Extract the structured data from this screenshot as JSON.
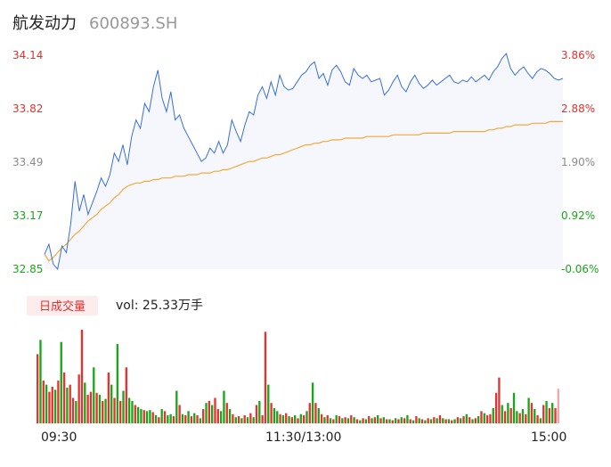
{
  "header": {
    "name": "航发动力",
    "code": "600893.SH"
  },
  "colors": {
    "up": "#e8312f",
    "down": "#1aa51a",
    "price": "#3a6fd6",
    "avg": "#f2a93b",
    "neutral": "#8a8a8a"
  },
  "volume_tab": {
    "label": "日成交量"
  },
  "volume_text": "vol: 25.33万手",
  "chart_data": {
    "type": "line",
    "x_ticks": [
      "09:30",
      "11:30/13:00",
      "15:00"
    ],
    "price_ticks": [
      "34.14",
      "33.82",
      "33.49",
      "33.17",
      "32.85"
    ],
    "pct_ticks": [
      "3.86%",
      "2.88%",
      "1.90%",
      "0.92%",
      "-0.06%"
    ],
    "ylim": [
      32.85,
      34.14
    ],
    "prev_close": 32.87,
    "series": [
      {
        "values": [
          32.94,
          33.0,
          32.88,
          32.85,
          32.99,
          32.95,
          33.12,
          33.38,
          33.2,
          33.3,
          33.18,
          33.25,
          33.32,
          33.4,
          33.35,
          33.42,
          33.55,
          33.5,
          33.6,
          33.48,
          33.65,
          33.75,
          33.7,
          33.85,
          33.8,
          33.95,
          34.05,
          33.88,
          33.8,
          33.92,
          33.75,
          33.78,
          33.7,
          33.65,
          33.6,
          33.55,
          33.5,
          33.52,
          33.58,
          33.55,
          33.62,
          33.55,
          33.6,
          33.75,
          33.68,
          33.62,
          33.72,
          33.8,
          33.78,
          33.9,
          33.95,
          33.88,
          33.98,
          33.9,
          34.02,
          33.95,
          33.93,
          33.94,
          33.98,
          34.02,
          34.04,
          34.08,
          34.1,
          34.0,
          34.03,
          33.96,
          34.05,
          34.08,
          34.04,
          33.98,
          33.96,
          34.06,
          34.02,
          34.0,
          34.02,
          33.98,
          33.99,
          34.0,
          33.9,
          33.93,
          33.98,
          34.02,
          33.95,
          33.92,
          33.98,
          34.02,
          33.97,
          33.94,
          33.96,
          33.99,
          33.96,
          33.98,
          34.0,
          34.02,
          33.98,
          33.97,
          33.99,
          33.98,
          34.01,
          33.98,
          34.0,
          34.02,
          33.99,
          34.04,
          34.07,
          34.12,
          34.15,
          34.06,
          34.02,
          34.05,
          34.07,
          34.03,
          34.0,
          34.04,
          34.06,
          34.05,
          34.03,
          34.0,
          33.99,
          34.0
        ]
      },
      {
        "values": [
          32.94,
          32.9,
          32.92,
          32.95,
          32.98,
          33.0,
          33.03,
          33.06,
          33.08,
          33.11,
          33.14,
          33.16,
          33.18,
          33.21,
          33.23,
          33.25,
          33.28,
          33.3,
          33.33,
          33.35,
          33.36,
          33.37,
          33.37,
          33.38,
          33.38,
          33.39,
          33.39,
          33.4,
          33.4,
          33.4,
          33.41,
          33.41,
          33.41,
          33.42,
          33.42,
          33.42,
          33.43,
          33.43,
          33.43,
          33.44,
          33.44,
          33.45,
          33.45,
          33.46,
          33.47,
          33.48,
          33.49,
          33.5,
          33.5,
          33.51,
          33.52,
          33.52,
          33.53,
          33.54,
          33.54,
          33.55,
          33.56,
          33.57,
          33.58,
          33.59,
          33.6,
          33.6,
          33.61,
          33.61,
          33.62,
          33.62,
          33.63,
          33.63,
          33.63,
          33.64,
          33.64,
          33.64,
          33.64,
          33.64,
          33.65,
          33.65,
          33.65,
          33.65,
          33.65,
          33.65,
          33.66,
          33.66,
          33.66,
          33.66,
          33.66,
          33.66,
          33.66,
          33.67,
          33.67,
          33.67,
          33.67,
          33.67,
          33.67,
          33.67,
          33.68,
          33.68,
          33.68,
          33.68,
          33.68,
          33.68,
          33.68,
          33.68,
          33.69,
          33.69,
          33.7,
          33.7,
          33.71,
          33.71,
          33.72,
          33.72,
          33.72,
          33.72,
          33.73,
          33.73,
          33.73,
          33.73,
          33.74,
          33.74,
          33.74,
          33.74
        ]
      }
    ],
    "volume": {
      "values": [
        68,
        82,
        42,
        38,
        31,
        36,
        33,
        42,
        80,
        50,
        35,
        38,
        25,
        22,
        48,
        92,
        40,
        28,
        31,
        55,
        30,
        28,
        22,
        24,
        50,
        38,
        25,
        78,
        22,
        32,
        55,
        25,
        22,
        18,
        16,
        14,
        13,
        12,
        13,
        11,
        8,
        6,
        14,
        12,
        8,
        9,
        7,
        32,
        18,
        9,
        8,
        12,
        7,
        10,
        8,
        5,
        14,
        20,
        22,
        18,
        25,
        14,
        12,
        32,
        20,
        14,
        9,
        6,
        7,
        5,
        8,
        6,
        10,
        6,
        18,
        22,
        8,
        90,
        38,
        20,
        15,
        12,
        9,
        8,
        10,
        7,
        6,
        8,
        5,
        9,
        8,
        12,
        20,
        40,
        20,
        15,
        9,
        6,
        8,
        5,
        4,
        8,
        7,
        5,
        6,
        5,
        8,
        6,
        4,
        3,
        5,
        4,
        7,
        5,
        6,
        8,
        5,
        6,
        4,
        4,
        3,
        5,
        4,
        6,
        5,
        8,
        4,
        3,
        7,
        5,
        4,
        3,
        5,
        4,
        6,
        5,
        8,
        5,
        4,
        4,
        3,
        4,
        6,
        5,
        7,
        9,
        6,
        4,
        5,
        7,
        12,
        10,
        8,
        9,
        15,
        30,
        45,
        18,
        12,
        20,
        15,
        30,
        12,
        10,
        14,
        9,
        25,
        20,
        14,
        8,
        5,
        18,
        22,
        15,
        20,
        15,
        34
      ],
      "colors": [
        "u",
        "d",
        "u",
        "d",
        "u",
        "u",
        "d",
        "u",
        "d",
        "u",
        "d",
        "u",
        "u",
        "d",
        "u",
        "u",
        "d",
        "u",
        "u",
        "d",
        "u",
        "d",
        "u",
        "d",
        "u",
        "d",
        "u",
        "d",
        "u",
        "d",
        "u",
        "d",
        "d",
        "u",
        "d",
        "d",
        "u",
        "d",
        "d",
        "u",
        "d",
        "u",
        "d",
        "u",
        "d",
        "d",
        "u",
        "d",
        "u",
        "d",
        "u",
        "d",
        "u",
        "d",
        "u",
        "d",
        "u",
        "d",
        "u",
        "d",
        "u",
        "u",
        "d",
        "d",
        "u",
        "d",
        "u",
        "d",
        "u",
        "d",
        "u",
        "d",
        "u",
        "d",
        "u",
        "d",
        "u",
        "u",
        "d",
        "u",
        "d",
        "d",
        "u",
        "d",
        "u",
        "d",
        "u",
        "d",
        "u",
        "d",
        "u",
        "d",
        "u",
        "d",
        "u",
        "d",
        "u",
        "d",
        "u",
        "d",
        "u",
        "d",
        "u",
        "d",
        "u",
        "d",
        "u",
        "d",
        "u",
        "d",
        "u",
        "d",
        "u",
        "d",
        "u",
        "d",
        "u",
        "d",
        "u",
        "d",
        "u",
        "d",
        "u",
        "d",
        "u",
        "d",
        "u",
        "d",
        "u",
        "d",
        "u",
        "d",
        "u",
        "d",
        "u",
        "d",
        "u",
        "d",
        "u",
        "d",
        "u",
        "d",
        "u",
        "d",
        "u",
        "d",
        "u",
        "d",
        "u",
        "d",
        "u",
        "d",
        "u",
        "u",
        "d",
        "u",
        "u",
        "d",
        "u",
        "d",
        "u",
        "d",
        "d",
        "u",
        "d",
        "u",
        "d",
        "u",
        "d",
        "u",
        "d",
        "u",
        "d",
        "u",
        "d",
        "u",
        "x"
      ]
    }
  }
}
